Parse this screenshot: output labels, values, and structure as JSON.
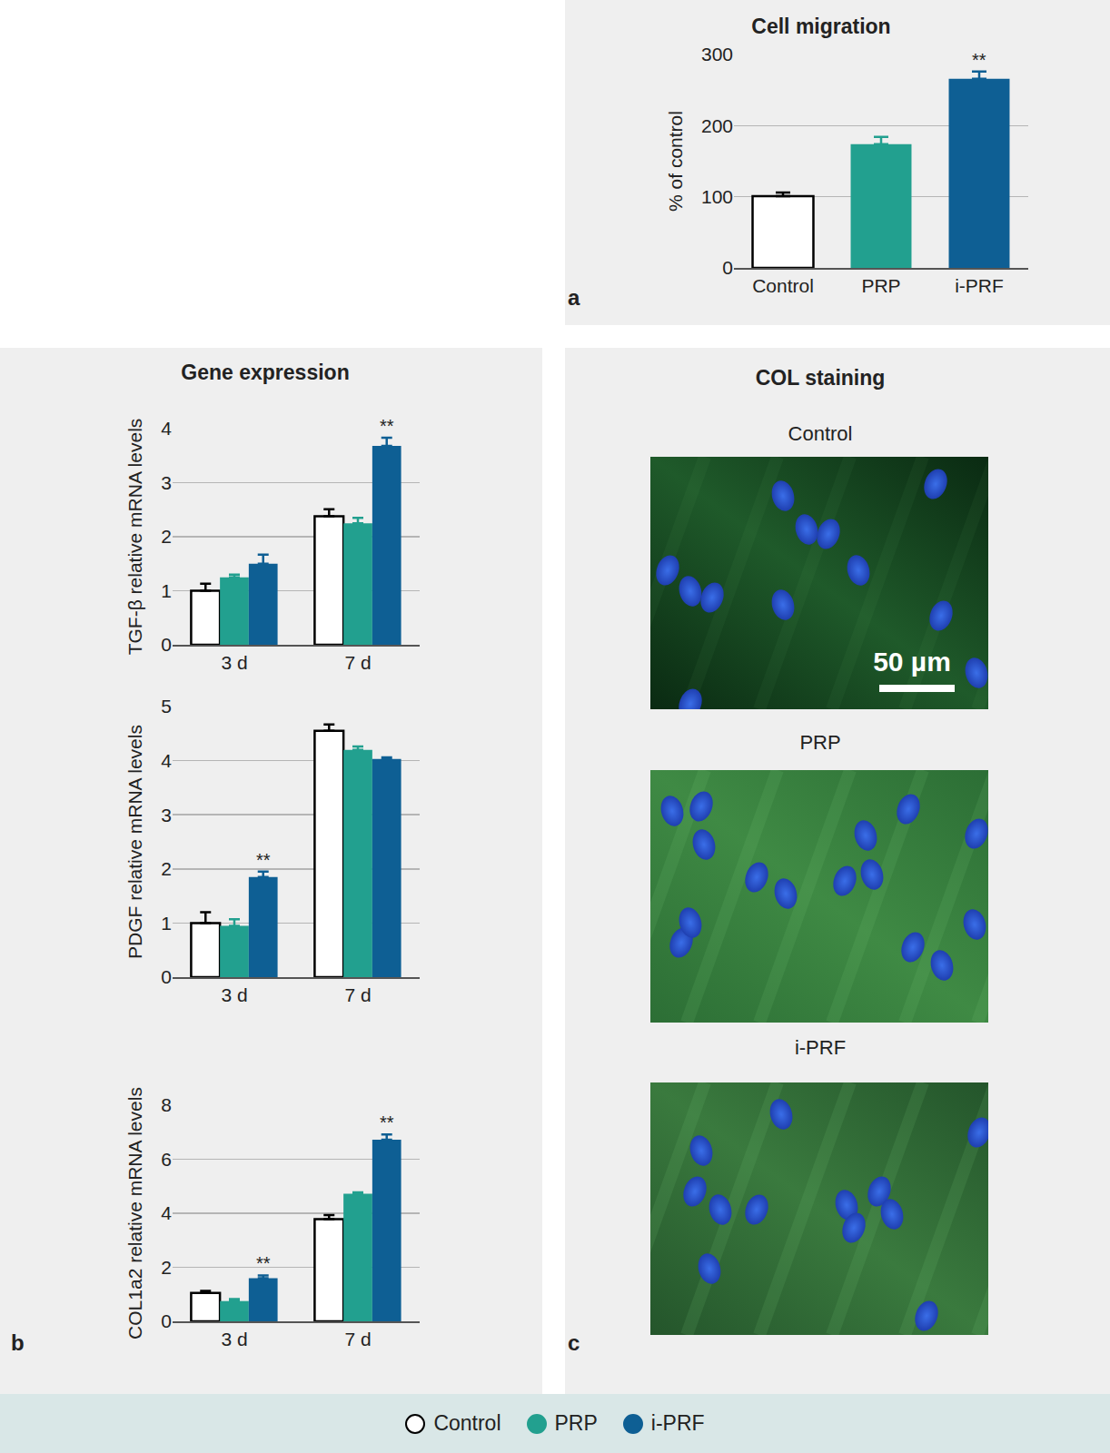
{
  "chart_data": [
    {
      "type": "bar",
      "title": "Cell migration",
      "y_label": "% of control",
      "categories": [
        "Control",
        "PRP",
        "i-PRF"
      ],
      "values": [
        101,
        174,
        266
      ],
      "errors": [
        5,
        10,
        10
      ],
      "colors": [
        "#ffffff",
        "#22a08f",
        "#0e5f94"
      ],
      "ylim": [
        0,
        300
      ],
      "yticks": [
        0,
        100,
        200,
        300
      ],
      "grid": true,
      "annotations": [
        {
          "text": "**",
          "category": "i-PRF"
        }
      ]
    },
    {
      "type": "bar",
      "y_label": "TGF-β relative mRNA levels",
      "categories": [
        "3 d",
        "7 d"
      ],
      "series": [
        {
          "name": "Control",
          "color": "#ffffff",
          "values": [
            1.0,
            2.38
          ],
          "errors": [
            0.13,
            0.13
          ]
        },
        {
          "name": "PRP",
          "color": "#22a08f",
          "values": [
            1.25,
            2.25
          ],
          "errors": [
            0.05,
            0.1
          ]
        },
        {
          "name": "i-PRF",
          "color": "#0e5f94",
          "values": [
            1.5,
            3.68
          ],
          "errors": [
            0.17,
            0.15
          ]
        }
      ],
      "ylim": [
        0,
        4
      ],
      "yticks": [
        0,
        1,
        2,
        3,
        4
      ],
      "grid": true,
      "legend": "bottom",
      "annotations": [
        {
          "text": "**",
          "series": "i-PRF",
          "category": "7 d"
        }
      ]
    },
    {
      "type": "bar",
      "y_label": "PDGF relative mRNA levels",
      "categories": [
        "3 d",
        "7 d"
      ],
      "series": [
        {
          "name": "Control",
          "color": "#ffffff",
          "values": [
            1.0,
            4.55
          ],
          "errors": [
            0.2,
            0.12
          ]
        },
        {
          "name": "PRP",
          "color": "#22a08f",
          "values": [
            0.95,
            4.2
          ],
          "errors": [
            0.12,
            0.06
          ]
        },
        {
          "name": "i-PRF",
          "color": "#0e5f94",
          "values": [
            1.85,
            4.03
          ],
          "errors": [
            0.1,
            0.03
          ]
        }
      ],
      "ylim": [
        0,
        5
      ],
      "yticks": [
        0,
        1,
        2,
        3,
        4,
        5
      ],
      "grid": true,
      "annotations": [
        {
          "text": "**",
          "series": "i-PRF",
          "category": "3 d"
        }
      ]
    },
    {
      "type": "bar",
      "y_label": "COL1a2 relative mRNA levels",
      "categories": [
        "3 d",
        "7 d"
      ],
      "series": [
        {
          "name": "Control",
          "color": "#ffffff",
          "values": [
            1.05,
            3.78
          ],
          "errors": [
            0.08,
            0.15
          ]
        },
        {
          "name": "PRP",
          "color": "#22a08f",
          "values": [
            0.75,
            4.72
          ],
          "errors": [
            0.07,
            0.05
          ]
        },
        {
          "name": "i-PRF",
          "color": "#0e5f94",
          "values": [
            1.6,
            6.72
          ],
          "errors": [
            0.1,
            0.2
          ]
        }
      ],
      "ylim": [
        0,
        8
      ],
      "yticks": [
        0,
        2,
        4,
        6,
        8
      ],
      "grid": true,
      "annotations": [
        {
          "text": "**",
          "series": "i-PRF",
          "category": "3 d"
        },
        {
          "text": "**",
          "series": "i-PRF",
          "category": "7 d"
        }
      ]
    }
  ],
  "panel_labels": [
    "a",
    "b",
    "c"
  ],
  "panel_b_title": "Gene expression",
  "panel_c": {
    "title": "COL staining",
    "images": [
      "Control",
      "PRP",
      "i-PRF"
    ],
    "scale_bar": "50 µm"
  }
}
